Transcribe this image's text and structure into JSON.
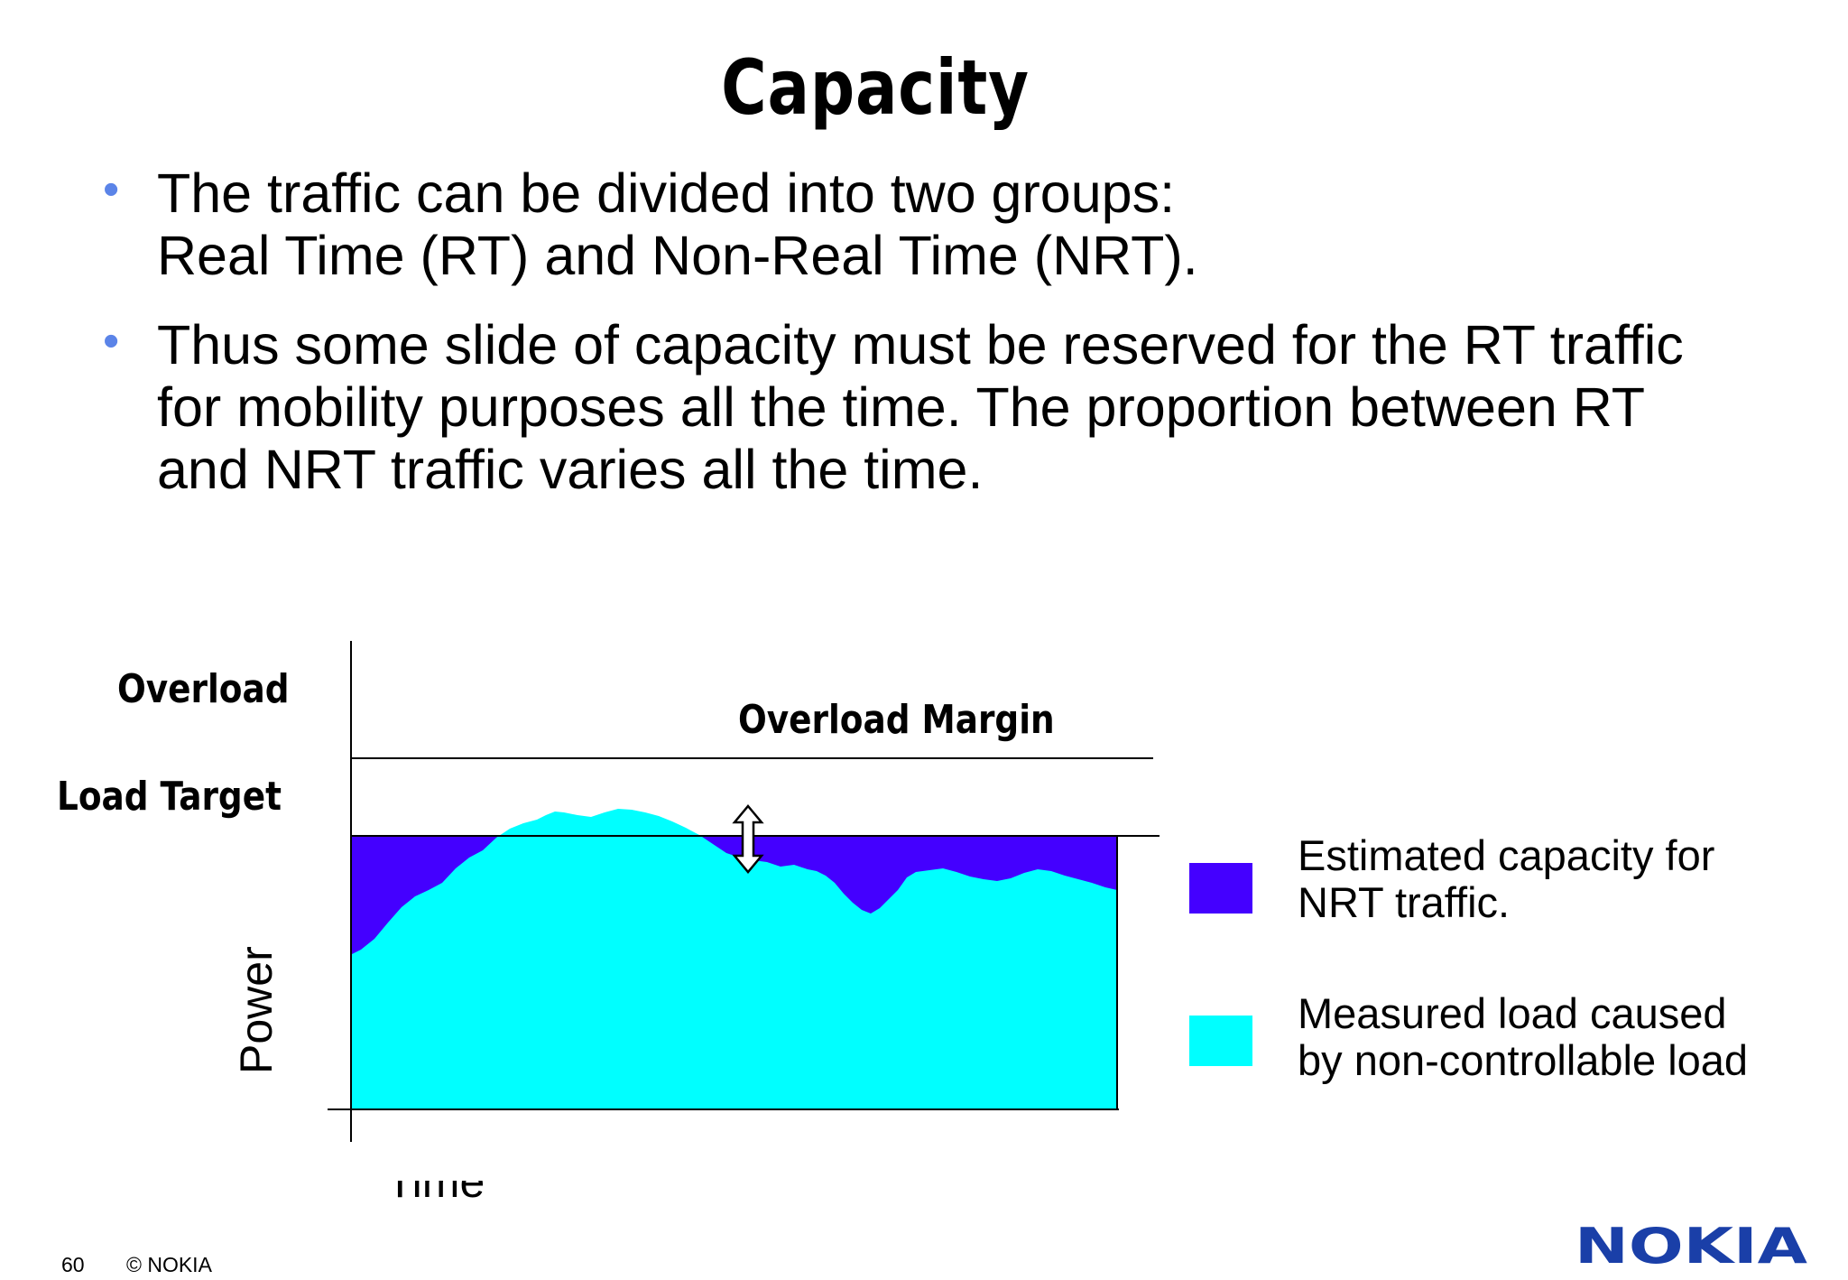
{
  "slide": {
    "title": "Capacity",
    "bullets": [
      {
        "lines": [
          "The traffic can be divided into two groups:",
          "Real Time (RT) and Non-Real Time (NRT)."
        ]
      },
      {
        "lines": [
          "Thus some slide of capacity must be reserved for the RT traffic",
          "for mobility purposes all the time. The proportion between RT",
          "and NRT traffic varies all the time."
        ]
      }
    ],
    "bullet_color": "#5b84e8"
  },
  "diagram": {
    "labels": {
      "overload": "Overload",
      "load_target": "Load Target",
      "overload_margin": "Overload Margin",
      "y_axis": "Power",
      "x_axis": "Time"
    },
    "legend": [
      {
        "lines": [
          "Estimated capacity for",
          "NRT traffic."
        ],
        "color": "#4400ff"
      },
      {
        "lines": [
          "Measured load caused",
          "by non-controllable load"
        ],
        "color": "#00ffff"
      }
    ],
    "icons": [
      "double-arrow-icon"
    ]
  },
  "footer": {
    "page_number": "60",
    "copyright": "© NOKIA",
    "logo_text": "NOKIA",
    "logo_color": "#1a3fa8"
  }
}
